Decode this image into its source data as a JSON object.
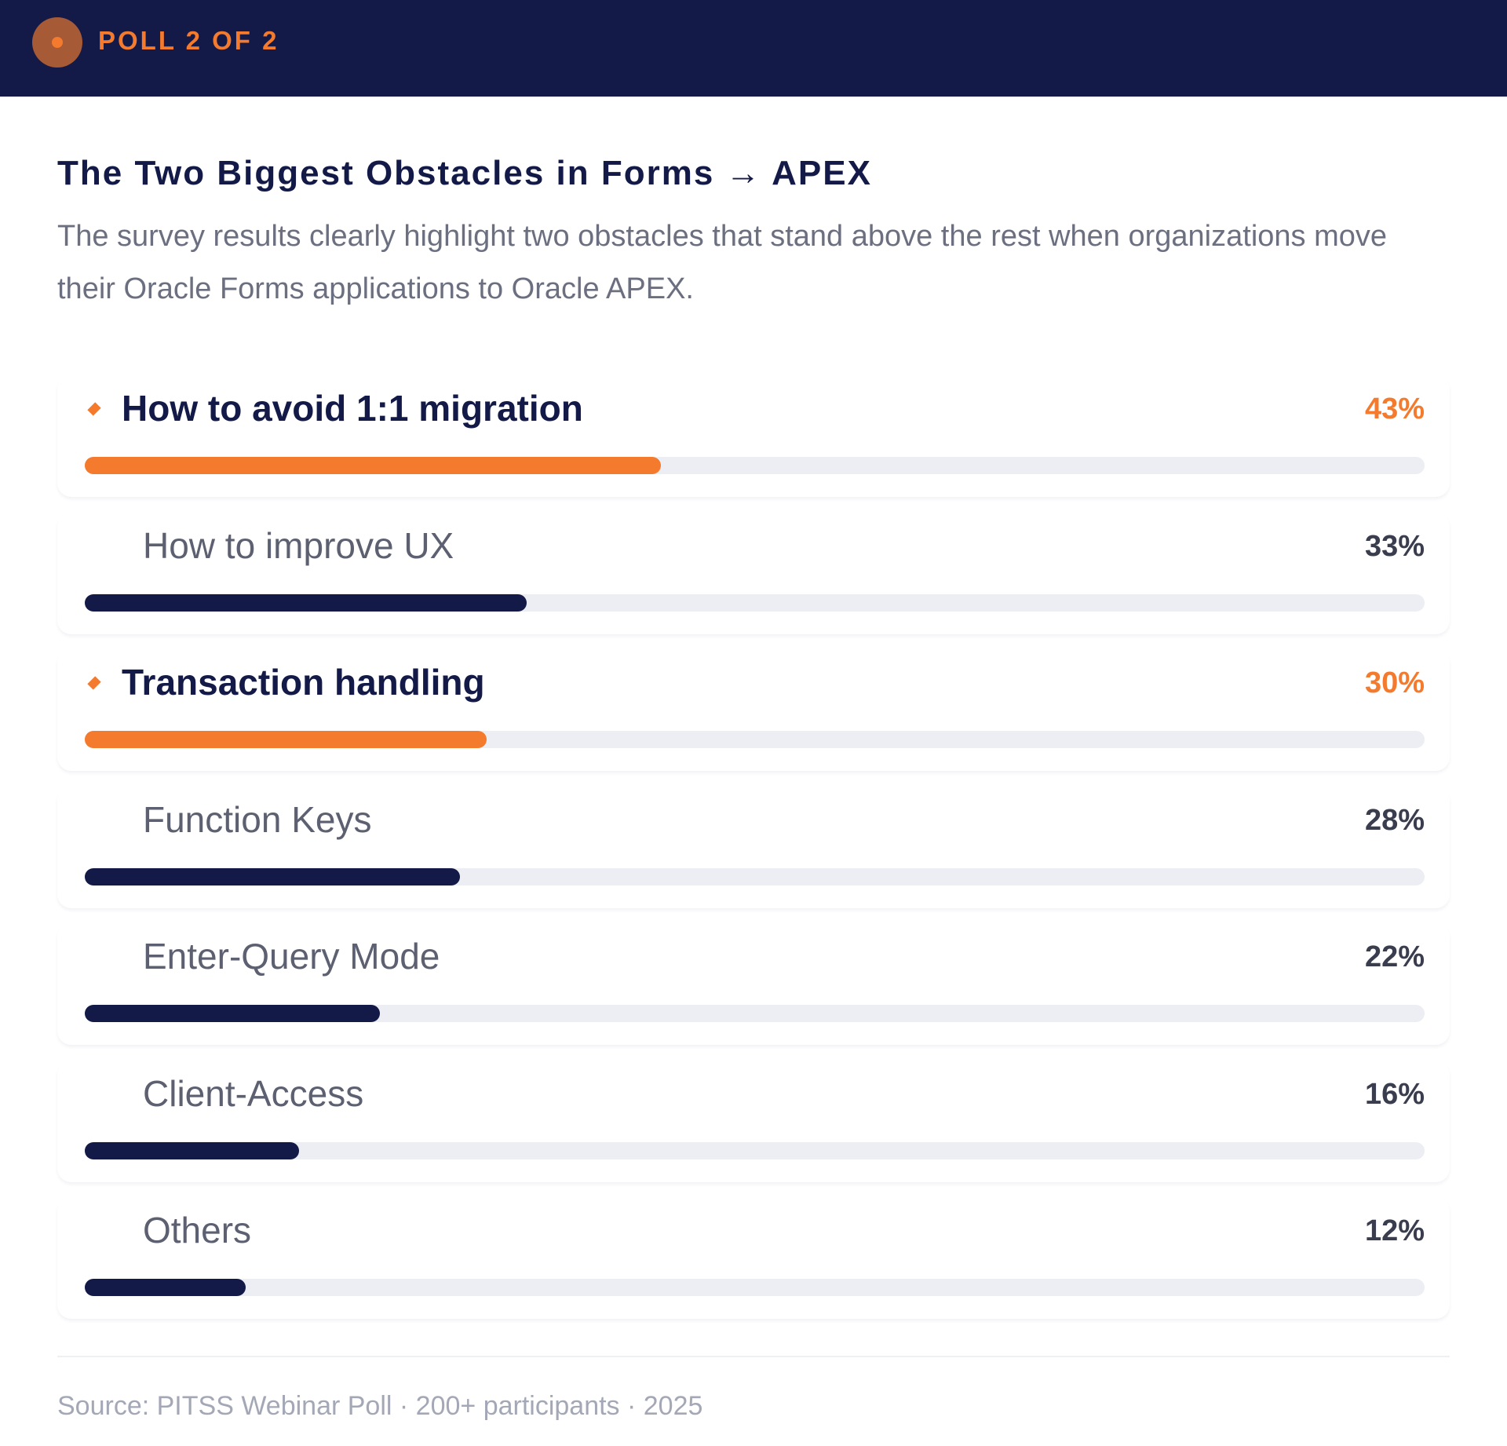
{
  "header": {
    "poll_label": "POLL 2 OF 2"
  },
  "title": "The Two Biggest Obstacles in Forms → APEX",
  "description": "The survey results clearly highlight two obstacles that stand above the rest when organizations move their Oracle Forms applications to Oracle APEX.",
  "colors": {
    "accent": "#f47a2e",
    "navy": "#131a48",
    "track": "#eceef3"
  },
  "chart_data": {
    "type": "bar",
    "orientation": "horizontal",
    "title": "The Two Biggest Obstacles in Forms → APEX",
    "xlim": [
      0,
      100
    ],
    "items": [
      {
        "label": "How to avoid 1:1 migration",
        "value": 43,
        "display": "43%",
        "highlight": true
      },
      {
        "label": "How to improve UX",
        "value": 33,
        "display": "33%",
        "highlight": false
      },
      {
        "label": "Transaction handling",
        "value": 30,
        "display": "30%",
        "highlight": true
      },
      {
        "label": "Function Keys",
        "value": 28,
        "display": "28%",
        "highlight": false
      },
      {
        "label": "Enter-Query Mode",
        "value": 22,
        "display": "22%",
        "highlight": false
      },
      {
        "label": "Client-Access",
        "value": 16,
        "display": "16%",
        "highlight": false
      },
      {
        "label": "Others",
        "value": 12,
        "display": "12%",
        "highlight": false
      }
    ]
  },
  "footer": {
    "source": "Source: PITSS Webinar Poll · 200+ participants · 2025"
  }
}
